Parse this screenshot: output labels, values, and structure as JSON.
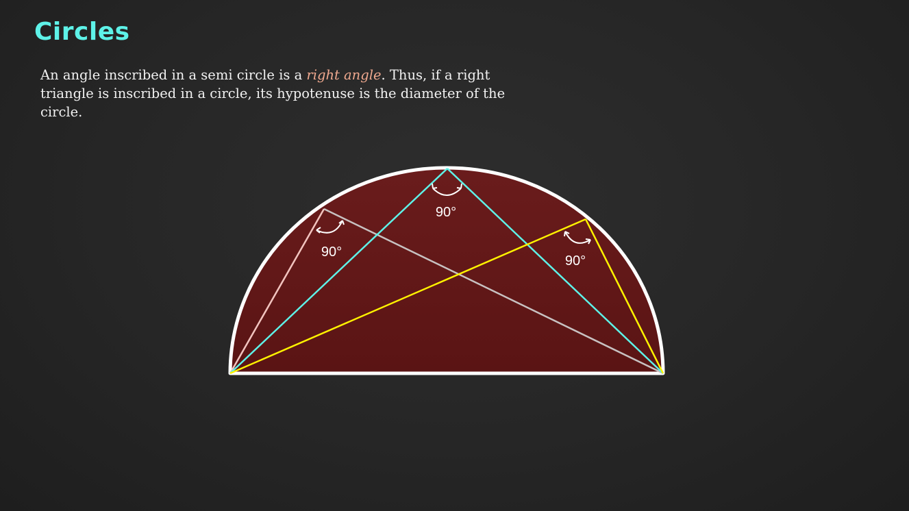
{
  "slide": {
    "title": "Circles",
    "body": {
      "before": "An angle inscribed in a semi circle is a ",
      "emphasis": "right angle",
      "after": ". Thus, if a right triangle is inscribed in a circle, its hypotenuse is the diameter of the circle."
    }
  },
  "diagram": {
    "angle_labels": {
      "top": "90°",
      "left": "90°",
      "right": "90°"
    },
    "colors": {
      "semicircle_fill": "#5e1616",
      "semicircle_outline": "#ffffff",
      "triangle_left": "#c8c2c2",
      "triangle_left_short_side": "#f2c4bf",
      "triangle_top": "#5ef2e8",
      "triangle_right": "#fff200"
    }
  }
}
